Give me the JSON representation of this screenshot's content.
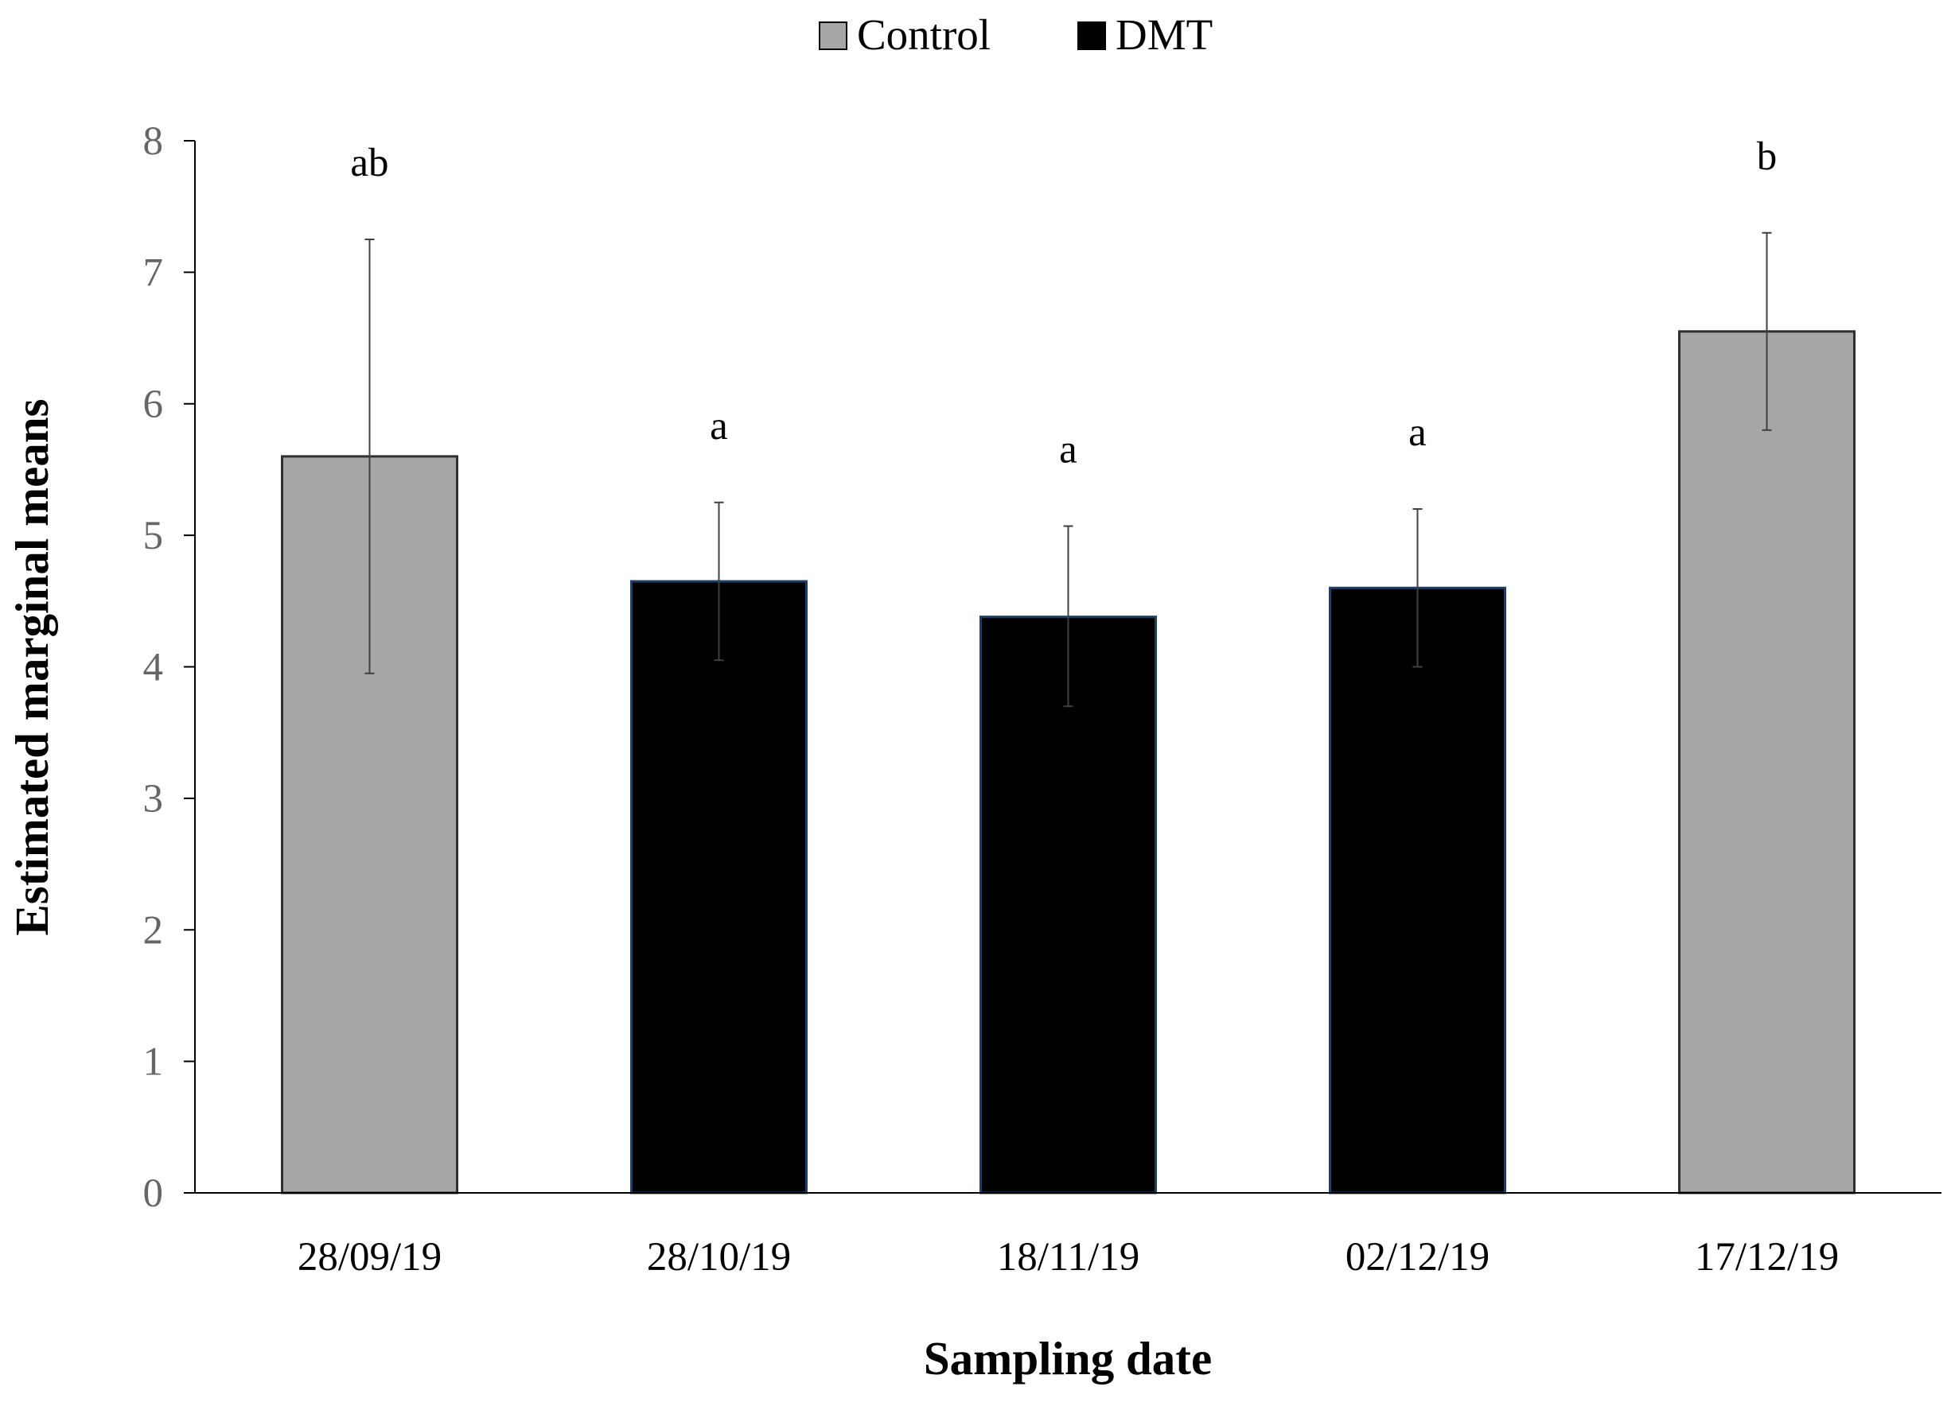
{
  "chart_data": {
    "type": "bar",
    "title": "",
    "xlabel": "Sampling date",
    "ylabel": "Estimated marginal means",
    "ylim": [
      0,
      8
    ],
    "yticks": [
      "0",
      "1",
      "2",
      "3",
      "4",
      "5",
      "6",
      "7",
      "8"
    ],
    "grid": false,
    "legend": {
      "position": "top-center",
      "entries": [
        {
          "name": "Control",
          "color": "#a6a6a6"
        },
        {
          "name": "DMT",
          "color": "#000000"
        }
      ]
    },
    "categories": [
      "28/09/19",
      "28/10/19",
      "18/11/19",
      "02/12/19",
      "17/12/19"
    ],
    "values": [
      5.6,
      4.65,
      4.38,
      4.6,
      6.55
    ],
    "groups": [
      "Control",
      "DMT",
      "DMT",
      "DMT",
      "Control"
    ],
    "error_low": [
      3.95,
      4.05,
      3.7,
      4.0,
      5.8
    ],
    "error_high": [
      7.25,
      5.25,
      5.07,
      5.2,
      7.3
    ],
    "significance_letters": [
      "ab",
      "a",
      "a",
      "a",
      "b"
    ]
  },
  "colors": {
    "control_fill": "#a6a6a6",
    "dmt_fill": "#000000",
    "error_bar": "#404040",
    "axis": "#000000"
  }
}
